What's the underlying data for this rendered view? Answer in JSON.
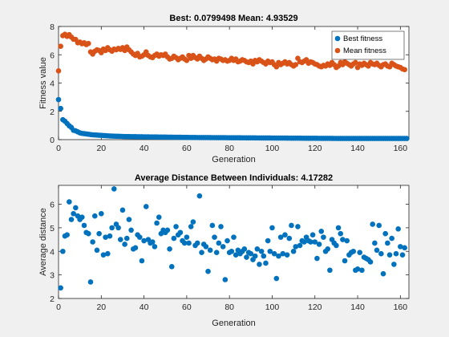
{
  "chart_data": [
    {
      "type": "scatter",
      "title": "Best: 0.0799498 Mean: 4.93529",
      "xlabel": "Generation",
      "ylabel": "Fitness value",
      "xlim": [
        0,
        164
      ],
      "ylim": [
        0,
        8
      ],
      "x_ticks": [
        0,
        20,
        40,
        60,
        80,
        100,
        120,
        140,
        160
      ],
      "y_ticks": [
        0,
        2,
        4,
        6,
        8
      ],
      "grid": false,
      "legend_position": "top-right",
      "series": [
        {
          "name": "Best fitness",
          "color": "#0072bd",
          "x_start": 0,
          "values": [
            2.83,
            2.2,
            1.41,
            1.3,
            1.14,
            0.98,
            0.86,
            0.66,
            0.62,
            0.55,
            0.48,
            0.44,
            0.42,
            0.4,
            0.38,
            0.36,
            0.34,
            0.33,
            0.32,
            0.31,
            0.3,
            0.29,
            0.28,
            0.27,
            0.26,
            0.25,
            0.245,
            0.24,
            0.235,
            0.23,
            0.225,
            0.22,
            0.218,
            0.215,
            0.212,
            0.21,
            0.208,
            0.205,
            0.203,
            0.2,
            0.198,
            0.196,
            0.194,
            0.192,
            0.19,
            0.188,
            0.186,
            0.184,
            0.182,
            0.18,
            0.178,
            0.176,
            0.174,
            0.172,
            0.17,
            0.168,
            0.166,
            0.164,
            0.162,
            0.16,
            0.158,
            0.156,
            0.154,
            0.152,
            0.15,
            0.149,
            0.148,
            0.147,
            0.146,
            0.145,
            0.144,
            0.143,
            0.142,
            0.141,
            0.14,
            0.139,
            0.138,
            0.137,
            0.136,
            0.135,
            0.134,
            0.133,
            0.132,
            0.131,
            0.13,
            0.129,
            0.128,
            0.127,
            0.126,
            0.125,
            0.124,
            0.123,
            0.122,
            0.121,
            0.12,
            0.119,
            0.118,
            0.117,
            0.116,
            0.115,
            0.114,
            0.113,
            0.112,
            0.111,
            0.11,
            0.109,
            0.108,
            0.107,
            0.106,
            0.105,
            0.104,
            0.103,
            0.102,
            0.101,
            0.1,
            0.099,
            0.098,
            0.097,
            0.096,
            0.095,
            0.094,
            0.093,
            0.092,
            0.091,
            0.09,
            0.089,
            0.088,
            0.087,
            0.086,
            0.085,
            0.085,
            0.084,
            0.084,
            0.083,
            0.083,
            0.082,
            0.082,
            0.082,
            0.081,
            0.081,
            0.081,
            0.081,
            0.081,
            0.08,
            0.08,
            0.08,
            0.08,
            0.08,
            0.08,
            0.08,
            0.08,
            0.08,
            0.08,
            0.08,
            0.08,
            0.08,
            0.08,
            0.08,
            0.08,
            0.08,
            0.08,
            0.08,
            0.08,
            0.08
          ]
        },
        {
          "name": "Mean fitness",
          "color": "#d95319",
          "x_start": 0,
          "values": [
            4.86,
            6.6,
            7.35,
            7.45,
            7.3,
            7.42,
            7.25,
            7.1,
            7.08,
            6.85,
            6.9,
            6.78,
            6.85,
            6.72,
            6.8,
            6.2,
            6.05,
            6.25,
            6.35,
            6.3,
            6.15,
            6.4,
            6.3,
            6.5,
            6.35,
            6.25,
            6.4,
            6.35,
            6.45,
            6.38,
            6.5,
            6.3,
            6.55,
            6.35,
            6.2,
            6.05,
            5.95,
            6.1,
            5.85,
            5.9,
            6.0,
            6.2,
            5.95,
            5.85,
            5.8,
            5.95,
            6.05,
            5.9,
            6.0,
            5.95,
            6.05,
            5.85,
            5.7,
            5.75,
            5.9,
            5.8,
            5.65,
            5.75,
            5.85,
            5.7,
            5.6,
            5.95,
            5.75,
            5.95,
            5.8,
            5.7,
            5.9,
            5.75,
            5.6,
            5.7,
            5.85,
            5.75,
            5.65,
            5.7,
            5.55,
            5.75,
            5.7,
            5.6,
            5.65,
            5.55,
            5.6,
            5.75,
            5.6,
            5.7,
            5.5,
            5.55,
            5.65,
            5.6,
            5.5,
            5.45,
            5.55,
            5.35,
            5.6,
            5.5,
            5.65,
            5.55,
            5.45,
            5.35,
            5.55,
            5.45,
            5.5,
            5.3,
            5.15,
            5.45,
            5.3,
            5.4,
            5.5,
            5.35,
            5.45,
            5.3,
            5.2,
            5.3,
            5.75,
            5.5,
            5.45,
            5.55,
            5.65,
            5.4,
            5.5,
            5.45,
            5.35,
            5.3,
            5.2,
            5.15,
            5.25,
            5.2,
            5.35,
            5.25,
            5.45,
            5.3,
            5.1,
            5.2,
            5.45,
            5.3,
            5.5,
            5.4,
            5.3,
            5.2,
            5.35,
            5.45,
            5.1,
            5.35,
            5.25,
            5.4,
            5.3,
            5.2,
            5.45,
            5.35,
            5.3,
            5.4,
            5.25,
            5.15,
            5.3,
            5.35,
            5.2,
            5.15,
            5.4,
            5.3,
            5.2,
            5.15,
            5.1,
            5.0,
            4.95
          ]
        }
      ]
    },
    {
      "type": "scatter",
      "title": "Average Distance Between Individuals: 4.17282",
      "xlabel": "Generation",
      "ylabel": "Average distance",
      "xlim": [
        0,
        164
      ],
      "ylim": [
        2,
        6.8
      ],
      "x_ticks": [
        0,
        20,
        40,
        60,
        80,
        100,
        120,
        140,
        160
      ],
      "y_ticks": [
        2,
        3,
        4,
        5,
        6
      ],
      "grid": false,
      "series": [
        {
          "color": "#0072bd",
          "x_start": 1,
          "values": [
            2.45,
            4.0,
            4.65,
            4.7,
            6.1,
            5.35,
            5.6,
            5.85,
            5.5,
            5.35,
            5.45,
            5.1,
            4.8,
            4.75,
            2.7,
            4.4,
            5.5,
            4.05,
            4.75,
            5.6,
            3.85,
            4.6,
            3.9,
            4.65,
            5.0,
            6.65,
            5.15,
            5.0,
            4.5,
            5.75,
            4.3,
            4.55,
            5.35,
            4.9,
            4.1,
            4.15,
            4.7,
            4.6,
            3.6,
            4.45,
            5.9,
            4.5,
            4.35,
            4.4,
            4.2,
            5.2,
            5.45,
            4.75,
            4.9,
            4.8,
            4.9,
            4.1,
            3.35,
            4.55,
            5.05,
            4.7,
            4.8,
            4.45,
            4.35,
            4.6,
            4.35,
            5.05,
            5.25,
            4.25,
            4.35,
            6.35,
            3.95,
            4.3,
            4.2,
            3.15,
            4.05,
            5.1,
            4.6,
            3.95,
            4.35,
            5.05,
            4.2,
            2.8,
            4.45,
            3.95,
            4.0,
            4.6,
            3.85,
            4.05,
            3.9,
            4.0,
            4.1,
            3.75,
            3.95,
            3.9,
            3.65,
            3.8,
            4.1,
            3.45,
            4.0,
            3.8,
            3.5,
            4.45,
            4.0,
            5.0,
            3.9,
            2.85,
            3.8,
            4.6,
            3.9,
            4.7,
            3.85,
            4.55,
            5.1,
            4.0,
            4.2,
            5.05,
            4.25,
            4.45,
            4.4,
            4.6,
            4.45,
            4.4,
            4.7,
            4.4,
            3.7,
            4.3,
            4.85,
            4.6,
            4.0,
            4.1,
            3.2,
            4.5,
            4.35,
            4.25,
            5.0,
            4.75,
            4.5,
            3.6,
            4.45,
            3.85,
            3.95,
            4.0,
            3.2,
            3.25,
            3.95,
            3.2,
            3.75,
            3.7,
            3.65,
            3.55,
            5.15,
            4.35,
            4.05,
            5.1,
            3.9,
            3.05,
            4.75,
            4.35,
            3.85,
            4.55,
            3.45,
            3.9,
            4.95,
            4.2,
            3.85,
            4.15
          ]
        }
      ]
    }
  ]
}
